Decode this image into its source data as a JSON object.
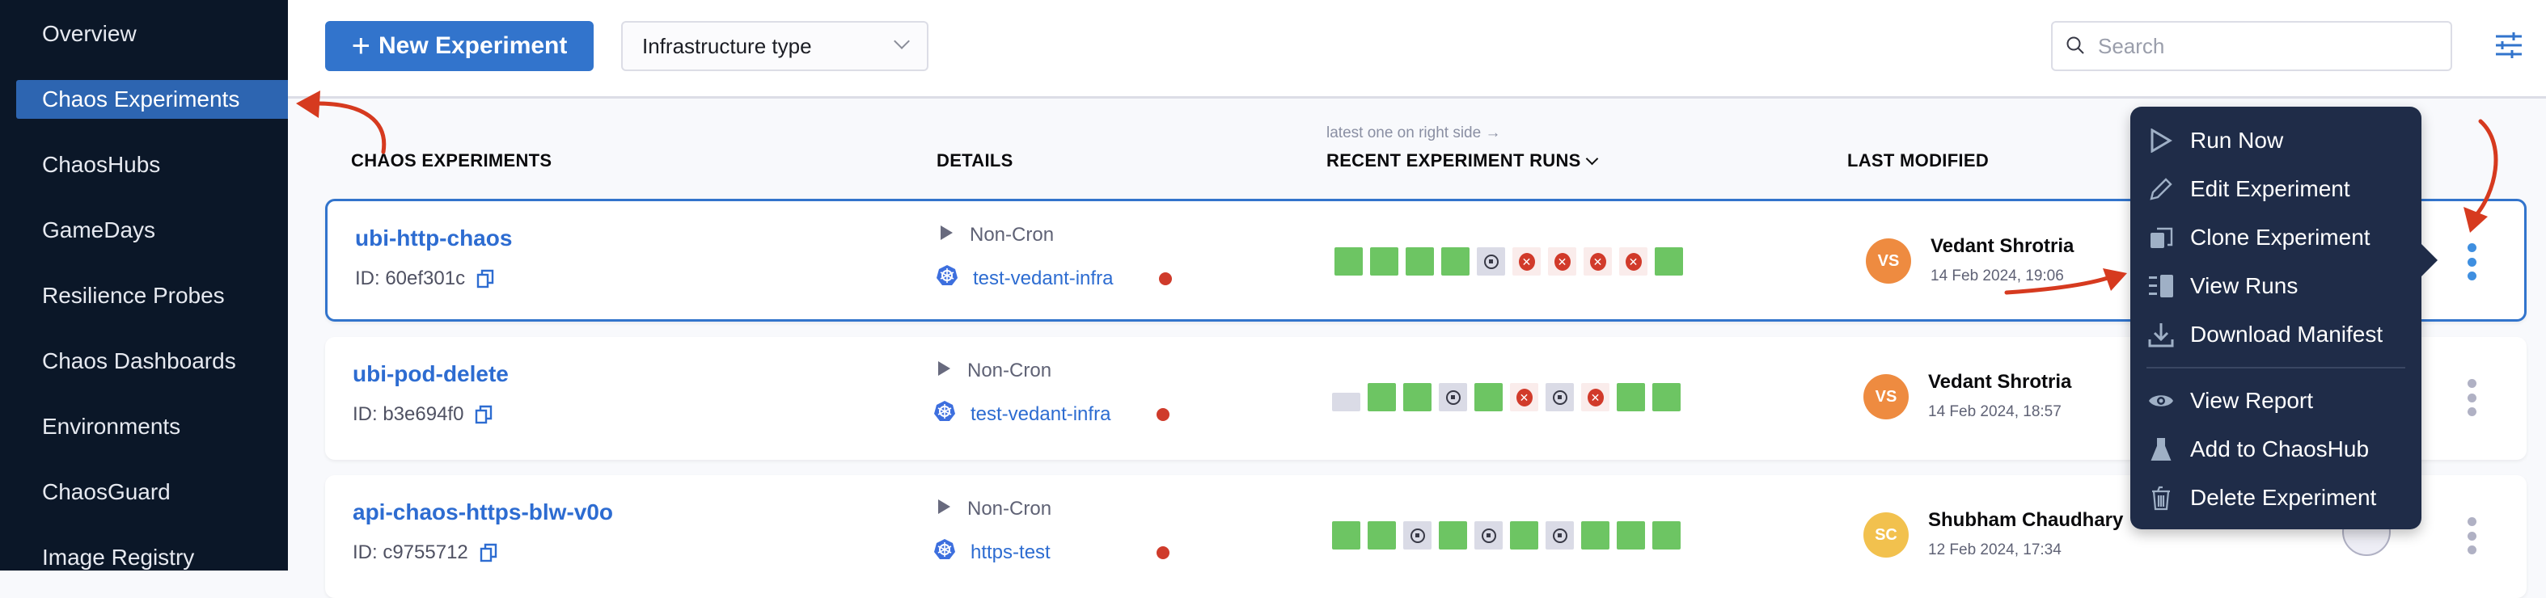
{
  "sidebar": {
    "items": [
      {
        "label": "Overview",
        "active": false
      },
      {
        "label": "Chaos Experiments",
        "active": true
      },
      {
        "label": "ChaosHubs",
        "active": false
      },
      {
        "label": "GameDays",
        "active": false
      },
      {
        "label": "Resilience Probes",
        "active": false
      },
      {
        "label": "Chaos Dashboards",
        "active": false
      },
      {
        "label": "Environments",
        "active": false
      },
      {
        "label": "ChaosGuard",
        "active": false
      },
      {
        "label": "Image Registry",
        "active": false
      }
    ]
  },
  "toolbar": {
    "new_label": "New Experiment",
    "infra_label": "Infrastructure type",
    "search_placeholder": "Search"
  },
  "table": {
    "hint": "latest one on right side →",
    "headers": {
      "experiments": "CHAOS EXPERIMENTS",
      "details": "DETAILS",
      "runs": "RECENT EXPERIMENT RUNS",
      "modified": "LAST MODIFIED"
    },
    "rows": [
      {
        "name": "ubi-http-chaos",
        "id": "ID: 60ef301c",
        "schedule": "Non-Cron",
        "infra": "test-vedant-infra",
        "selected": true,
        "runs": [
          "success",
          "success",
          "success",
          "success",
          "stopped",
          "failed",
          "failed",
          "failed",
          "failed",
          "success"
        ],
        "user": "Vedant Shrotria",
        "initials": "VS",
        "avatar_color": "#ee8b40",
        "date": "14 Feb 2024, 19:06"
      },
      {
        "name": "ubi-pod-delete",
        "id": "ID: b3e694f0",
        "schedule": "Non-Cron",
        "infra": "test-vedant-infra",
        "selected": false,
        "runs": [
          "queued",
          "success",
          "success",
          "stopped",
          "success",
          "failed",
          "stopped",
          "failed",
          "success",
          "success"
        ],
        "user": "Vedant Shrotria",
        "initials": "VS",
        "avatar_color": "#ee8b40",
        "date": "14 Feb 2024, 18:57"
      },
      {
        "name": "api-chaos-https-blw-v0o",
        "id": "ID: c9755712",
        "schedule": "Non-Cron",
        "infra": "https-test",
        "selected": false,
        "runs": [
          "success",
          "success",
          "stopped",
          "success",
          "stopped",
          "success",
          "stopped",
          "success",
          "success",
          "success"
        ],
        "user": "Shubham Chaudhary",
        "initials": "SC",
        "avatar_color": "#f2c14e",
        "date": "12 Feb 2024, 17:34"
      }
    ]
  },
  "menu": {
    "items": [
      {
        "label": "Run Now",
        "icon": "play-outline-icon"
      },
      {
        "label": "Edit Experiment",
        "icon": "pencil-icon"
      },
      {
        "label": "Clone Experiment",
        "icon": "clone-icon"
      },
      {
        "label": "View Runs",
        "icon": "list-icon"
      },
      {
        "label": "Download Manifest",
        "icon": "download-icon"
      },
      {
        "label": "View Report",
        "icon": "eye-icon"
      },
      {
        "label": "Add to ChaosHub",
        "icon": "flask-icon"
      },
      {
        "label": "Delete Experiment",
        "icon": "trash-icon"
      }
    ]
  },
  "colors": {
    "sidebar_bg": "#0b1728",
    "accent": "#3274cc",
    "success": "#6dc563",
    "failed": "#d13a2a",
    "stopped": "#dadbe6",
    "menu_bg": "#1f2c48",
    "annotation": "#d63a1f"
  }
}
